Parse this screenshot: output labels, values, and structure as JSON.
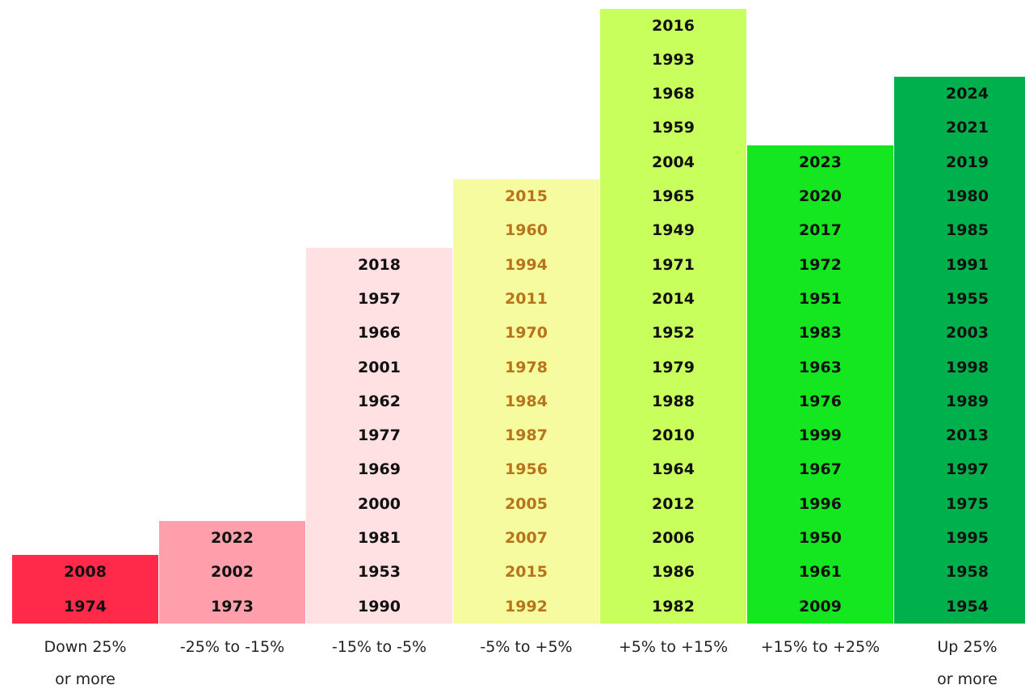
{
  "chart_data": {
    "type": "stack",
    "categories": [
      [
        "Down 25%",
        "or more"
      ],
      [
        "-25% to -15%"
      ],
      [
        "-15% to -5%"
      ],
      [
        "-5% to +5%"
      ],
      [
        "+5% to +15%"
      ],
      [
        "+15% to +25%"
      ],
      [
        "Up 25%",
        "or more"
      ]
    ],
    "colors": [
      "#ff2a4a",
      "#ff9fab",
      "#ffe0e3",
      "#f5fb9e",
      "#c9ff5c",
      "#14e620",
      "#00b04c"
    ],
    "text_colors": [
      "#111111",
      "#111111",
      "#111111",
      "#b8741a",
      "#111111",
      "#111111",
      "#111111"
    ],
    "columns": [
      [
        2008,
        1974
      ],
      [
        2022,
        2002,
        1973
      ],
      [
        2018,
        1957,
        1966,
        2001,
        1962,
        1977,
        1969,
        2000,
        1981,
        1953,
        1990
      ],
      [
        2015,
        1960,
        1994,
        2011,
        1970,
        1978,
        1984,
        1987,
        1956,
        2005,
        2007,
        2015,
        1992
      ],
      [
        2016,
        1993,
        1968,
        1959,
        2004,
        1965,
        1949,
        1971,
        2014,
        1952,
        1979,
        1988,
        2010,
        1964,
        2012,
        2006,
        1986,
        1982
      ],
      [
        2023,
        2020,
        2017,
        1972,
        1951,
        1983,
        1963,
        1976,
        1999,
        1967,
        1996,
        1950,
        1961,
        2009
      ],
      [
        2024,
        2021,
        2019,
        1980,
        1985,
        1991,
        1955,
        2003,
        1998,
        1989,
        2013,
        1997,
        1975,
        1995,
        1958,
        1954
      ]
    ]
  }
}
